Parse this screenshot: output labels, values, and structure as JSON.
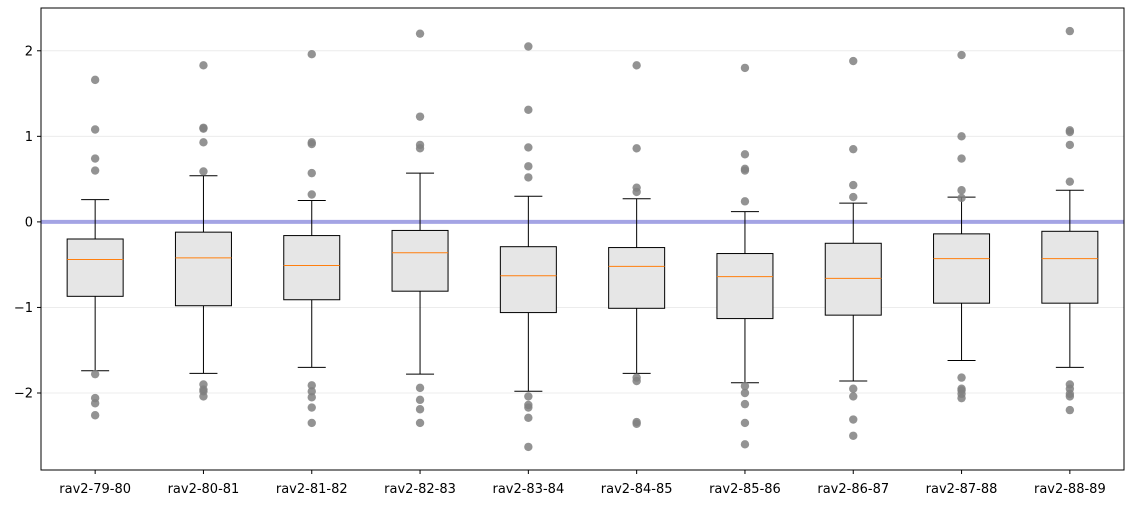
{
  "chart_data": {
    "type": "box",
    "title": "",
    "xlabel": "",
    "ylabel": "",
    "ylim": [
      -2.9,
      2.5
    ],
    "yticks": [
      2,
      1,
      0,
      -1,
      -2
    ],
    "ytick_labels": [
      "2",
      "1",
      "0",
      "−1",
      "−2"
    ],
    "grid": "horizontal",
    "reference_line": {
      "y": 0,
      "color": "#a4a4e4"
    },
    "colors": {
      "box_fill": "#e6e6e6",
      "median": "#ff7f0e",
      "outlier": "#808080",
      "grid": "#ececec"
    },
    "categories": [
      "rav2-79-80",
      "rav2-80-81",
      "rav2-81-82",
      "rav2-82-83",
      "rav2-83-84",
      "rav2-84-85",
      "rav2-85-86",
      "rav2-86-87",
      "rav2-87-88",
      "rav2-88-89"
    ],
    "boxes": [
      {
        "q1": -0.87,
        "median": -0.44,
        "q3": -0.2,
        "whisker_low": -1.74,
        "whisker_high": 0.26,
        "outliers": [
          1.66,
          1.08,
          0.74,
          0.6,
          -1.78,
          -2.06,
          -2.12,
          -2.26
        ]
      },
      {
        "q1": -0.98,
        "median": -0.42,
        "q3": -0.12,
        "whisker_low": -1.77,
        "whisker_high": 0.54,
        "outliers": [
          1.83,
          1.1,
          1.09,
          0.93,
          0.59,
          -1.9,
          -1.96,
          -1.98,
          -2.04
        ]
      },
      {
        "q1": -0.91,
        "median": -0.51,
        "q3": -0.16,
        "whisker_low": -1.7,
        "whisker_high": 0.25,
        "outliers": [
          1.96,
          0.93,
          0.91,
          0.57,
          0.32,
          -1.91,
          -1.98,
          -2.05,
          -2.17,
          -2.35
        ]
      },
      {
        "q1": -0.81,
        "median": -0.36,
        "q3": -0.1,
        "whisker_low": -1.78,
        "whisker_high": 0.57,
        "outliers": [
          2.2,
          1.23,
          0.9,
          0.86,
          -1.94,
          -2.08,
          -2.19,
          -2.35
        ]
      },
      {
        "q1": -1.06,
        "median": -0.63,
        "q3": -0.29,
        "whisker_low": -1.98,
        "whisker_high": 0.3,
        "outliers": [
          2.05,
          1.31,
          0.87,
          0.65,
          0.52,
          -2.04,
          -2.14,
          -2.17,
          -2.29,
          -2.63
        ]
      },
      {
        "q1": -1.01,
        "median": -0.52,
        "q3": -0.3,
        "whisker_low": -1.77,
        "whisker_high": 0.27,
        "outliers": [
          1.83,
          0.86,
          0.4,
          0.35,
          -1.82,
          -1.86,
          -2.34,
          -2.36
        ]
      },
      {
        "q1": -1.13,
        "median": -0.64,
        "q3": -0.37,
        "whisker_low": -1.88,
        "whisker_high": 0.12,
        "outliers": [
          1.8,
          0.79,
          0.62,
          0.6,
          0.24,
          -1.92,
          -2.0,
          -2.13,
          -2.35,
          -2.6
        ]
      },
      {
        "q1": -1.09,
        "median": -0.66,
        "q3": -0.25,
        "whisker_low": -1.86,
        "whisker_high": 0.22,
        "outliers": [
          1.88,
          0.85,
          0.43,
          0.29,
          -1.95,
          -2.04,
          -2.31,
          -2.5
        ]
      },
      {
        "q1": -0.95,
        "median": -0.43,
        "q3": -0.14,
        "whisker_low": -1.62,
        "whisker_high": 0.29,
        "outliers": [
          1.95,
          1.0,
          0.74,
          0.37,
          0.28,
          -1.82,
          -1.95,
          -1.97,
          -2.01,
          -2.06
        ]
      },
      {
        "q1": -0.95,
        "median": -0.43,
        "q3": -0.11,
        "whisker_low": -1.7,
        "whisker_high": 0.37,
        "outliers": [
          2.23,
          1.07,
          1.05,
          0.9,
          0.47,
          -1.9,
          -1.95,
          -2.01,
          -2.04,
          -2.2
        ]
      }
    ]
  }
}
